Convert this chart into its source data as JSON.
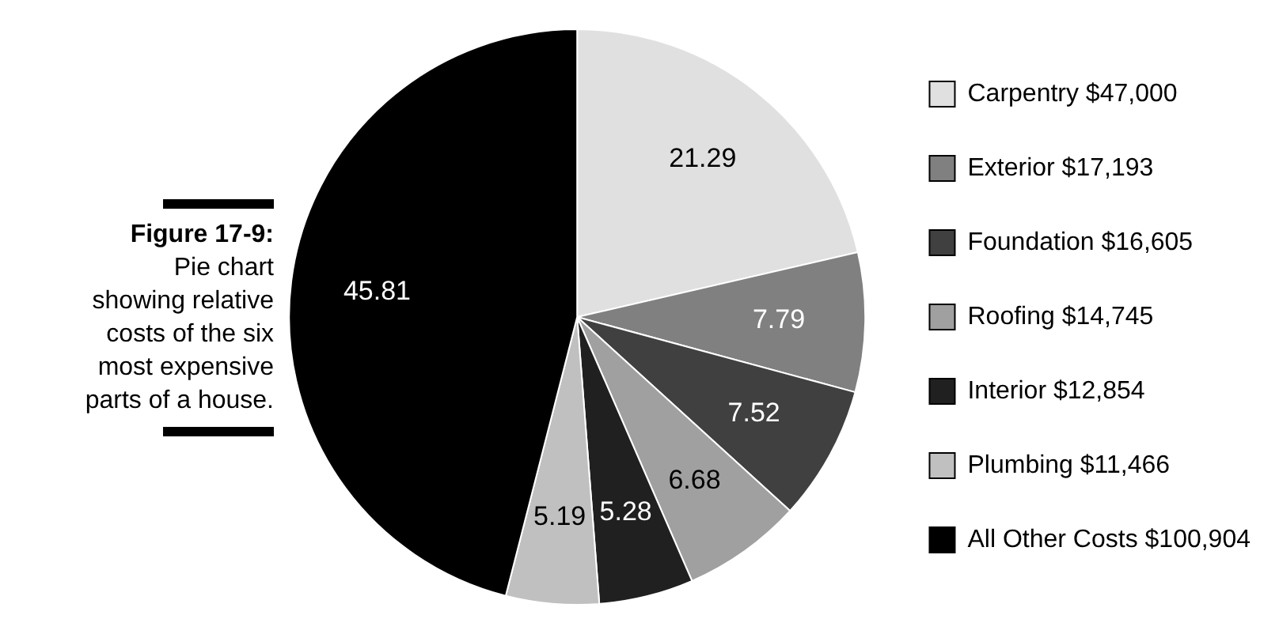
{
  "chart_data": {
    "type": "pie",
    "title": "Figure 17-9:",
    "subtitle": "Pie chart showing relative costs of the six most expensive parts of a house.",
    "categories": [
      "Carpentry $47,000",
      "Exterior $17,193",
      "Foundation $16,605",
      "Roofing $14,745",
      "Interior $12,854",
      "Plumbing $11,466",
      "All Other Costs $100,904"
    ],
    "values": [
      21.29,
      7.79,
      7.52,
      6.68,
      5.28,
      5.19,
      45.81
    ],
    "colors": [
      "#e0e0e0",
      "#808080",
      "#404040",
      "#a0a0a0",
      "#202020",
      "#c0c0c0",
      "#000000"
    ],
    "data_labels": true,
    "legend": "right"
  }
}
